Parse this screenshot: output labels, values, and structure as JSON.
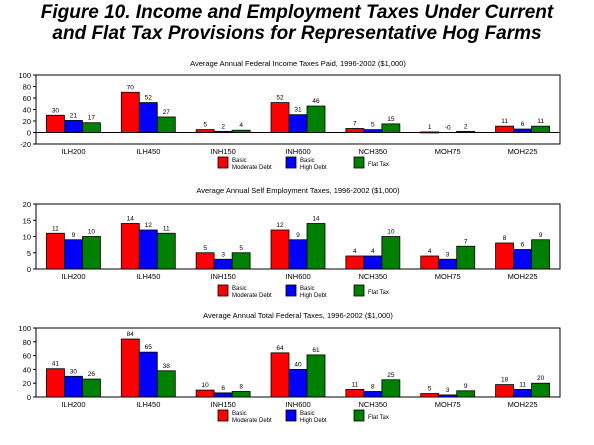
{
  "figure": {
    "title_line1": "Figure 10. Income and Employment Taxes Under Current",
    "title_line2": "and Flat Tax Provisions for Representative Hog Farms"
  },
  "colors": {
    "basic_moderate_debt": "#ff0000",
    "basic_high_debt": "#0000ff",
    "flat_tax": "#008000"
  },
  "chart_data": [
    {
      "type": "bar",
      "title": "Average Annual Federal Income Taxes Paid, 1996-2002 ($1,000)",
      "categories": [
        "ILH200",
        "ILH450",
        "INH150",
        "INH600",
        "NCH350",
        "MOH75",
        "MOH225"
      ],
      "ylim": [
        -20,
        100
      ],
      "yticks": [
        -20,
        0,
        20,
        40,
        60,
        80,
        100
      ],
      "grid": false,
      "legend_position": "bottom-center",
      "series": [
        {
          "name": "Basic Moderate Debt",
          "values": [
            30,
            70,
            5,
            52,
            7,
            1,
            11
          ]
        },
        {
          "name": "Basic High Debt",
          "values": [
            21,
            52,
            2,
            31,
            5,
            0,
            6
          ]
        },
        {
          "name": "Flat Tax",
          "values": [
            17,
            27,
            4,
            46,
            15,
            2,
            11
          ]
        }
      ],
      "value_labels": [
        [
          "30",
          "70",
          "5",
          "52",
          "7",
          "1",
          "11"
        ],
        [
          "21",
          "52",
          "2",
          "31",
          "5",
          "-0",
          "6"
        ],
        [
          "17",
          "27",
          "4",
          "46",
          "15",
          "2",
          "11"
        ]
      ]
    },
    {
      "type": "bar",
      "title": "Average Annual Self Employment Taxes, 1996-2002 ($1,000)",
      "categories": [
        "ILH200",
        "ILH450",
        "INH150",
        "INH600",
        "NCH350",
        "MOH75",
        "MOH225"
      ],
      "ylim": [
        0,
        20
      ],
      "yticks": [
        0,
        5,
        10,
        15,
        20
      ],
      "grid": false,
      "legend_position": "bottom-center",
      "series": [
        {
          "name": "Basic Moderate Debt",
          "values": [
            11,
            14,
            5,
            12,
            4,
            4,
            8
          ]
        },
        {
          "name": "Basic High Debt",
          "values": [
            9,
            12,
            3,
            9,
            4,
            3,
            6
          ]
        },
        {
          "name": "Flat Tax",
          "values": [
            10,
            11,
            5,
            14,
            10,
            7,
            9
          ]
        }
      ],
      "value_labels": [
        [
          "11",
          "14",
          "5",
          "12",
          "4",
          "4",
          "8"
        ],
        [
          "9",
          "12",
          "3",
          "9",
          "4",
          "3",
          "6"
        ],
        [
          "10",
          "11",
          "5",
          "14",
          "10",
          "7",
          "9"
        ]
      ]
    },
    {
      "type": "bar",
      "title": "Average Annual Total Federal Taxes, 1996-2002 ($1,000)",
      "categories": [
        "ILH200",
        "ILH450",
        "INH150",
        "INH600",
        "NCH350",
        "MOH75",
        "MOH225"
      ],
      "ylim": [
        0,
        100
      ],
      "yticks": [
        0,
        20,
        40,
        60,
        80,
        100
      ],
      "grid": false,
      "legend_position": "bottom-center",
      "series": [
        {
          "name": "Basic Moderate Debt",
          "values": [
            41,
            84,
            10,
            64,
            11,
            5,
            18
          ]
        },
        {
          "name": "Basic High Debt",
          "values": [
            30,
            65,
            6,
            40,
            8,
            3,
            11
          ]
        },
        {
          "name": "Flat Tax",
          "values": [
            26,
            38,
            8,
            61,
            25,
            9,
            20
          ]
        }
      ],
      "value_labels": [
        [
          "41",
          "84",
          "10",
          "64",
          "11",
          "5",
          "18"
        ],
        [
          "30",
          "65",
          "6",
          "40",
          "8",
          "3",
          "11"
        ],
        [
          "26",
          "38",
          "8",
          "61",
          "25",
          "9",
          "20"
        ]
      ]
    }
  ],
  "legend": {
    "items": [
      {
        "line1": "Basic",
        "line2": "Moderate Debt"
      },
      {
        "line1": "Basic",
        "line2": "High Debt"
      },
      {
        "line1": "Flat Tax",
        "line2": ""
      }
    ]
  }
}
